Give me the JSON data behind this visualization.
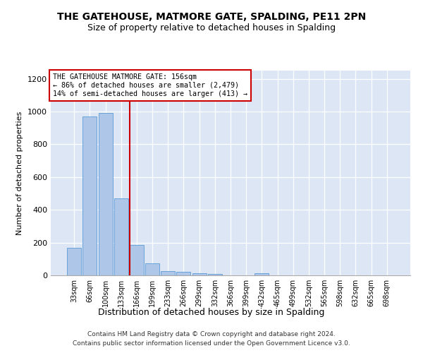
{
  "title": "THE GATEHOUSE, MATMORE GATE, SPALDING, PE11 2PN",
  "subtitle": "Size of property relative to detached houses in Spalding",
  "xlabel": "Distribution of detached houses by size in Spalding",
  "ylabel": "Number of detached properties",
  "categories": [
    "33sqm",
    "66sqm",
    "100sqm",
    "133sqm",
    "166sqm",
    "199sqm",
    "233sqm",
    "266sqm",
    "299sqm",
    "332sqm",
    "366sqm",
    "399sqm",
    "432sqm",
    "465sqm",
    "499sqm",
    "532sqm",
    "565sqm",
    "598sqm",
    "632sqm",
    "665sqm",
    "698sqm"
  ],
  "values": [
    170,
    970,
    990,
    470,
    185,
    75,
    28,
    22,
    15,
    10,
    0,
    0,
    12,
    0,
    0,
    0,
    0,
    0,
    0,
    0,
    0
  ],
  "bar_color": "#aec6e8",
  "bar_edge_color": "#5b9bd5",
  "marker_line_color": "#cc0000",
  "annotation_text": "THE GATEHOUSE MATMORE GATE: 156sqm\n← 86% of detached houses are smaller (2,479)\n14% of semi-detached houses are larger (413) →",
  "annotation_box_color": "#ffffff",
  "annotation_box_edge_color": "#cc0000",
  "ylim": [
    0,
    1250
  ],
  "yticks": [
    0,
    200,
    400,
    600,
    800,
    1000,
    1200
  ],
  "background_color": "#dce6f5",
  "grid_color": "#ffffff",
  "footer_line1": "Contains HM Land Registry data © Crown copyright and database right 2024.",
  "footer_line2": "Contains public sector information licensed under the Open Government Licence v3.0."
}
